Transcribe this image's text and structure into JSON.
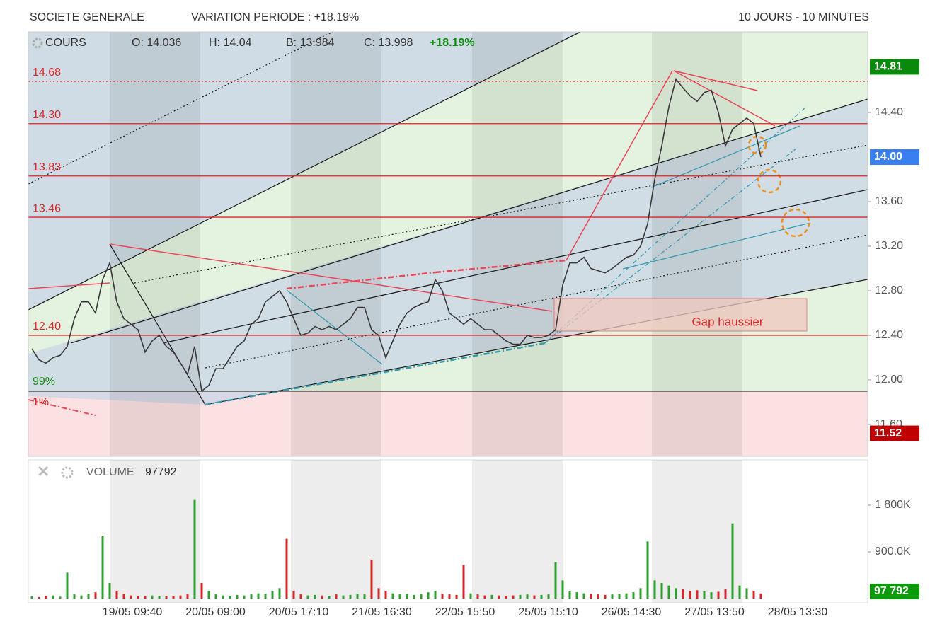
{
  "header": {
    "title": "SOCIETE GENERALE",
    "variation": "VARIATION PERIODE : +18.19%",
    "period": "10 JOURS - 10 MINUTES"
  },
  "chart_data": [
    {
      "type": "line",
      "legend": {
        "name": "COURS",
        "open": "O: 14.036",
        "high": "H: 14.04",
        "low": "B: 13.984",
        "close": "C: 13.998",
        "change": "+18.19%"
      },
      "xtick_labels": [
        "19/05 09:40",
        "20/05 09:00",
        "20/05 17:10",
        "21/05 16:30",
        "22/05 15:50",
        "25/05 15:10",
        "26/05 14:30",
        "27/05 13:50",
        "28/05 13:30"
      ],
      "values": [
        12.28,
        12.18,
        12.15,
        12.2,
        12.22,
        12.3,
        12.55,
        12.7,
        12.7,
        12.6,
        12.9,
        13.05,
        12.7,
        12.55,
        12.5,
        12.45,
        12.25,
        12.35,
        12.4,
        12.3,
        12.25,
        12.15,
        12.05,
        12.3,
        11.9,
        11.95,
        12.1,
        12.1,
        12.2,
        12.3,
        12.35,
        12.5,
        12.55,
        12.7,
        12.75,
        12.8,
        12.7,
        12.55,
        12.4,
        12.42,
        12.48,
        12.45,
        12.48,
        12.45,
        12.5,
        12.55,
        12.65,
        12.65,
        12.45,
        12.4,
        12.2,
        12.35,
        12.5,
        12.6,
        12.65,
        12.68,
        12.7,
        12.9,
        12.8,
        12.6,
        12.55,
        12.5,
        12.55,
        12.5,
        12.45,
        12.45,
        12.4,
        12.35,
        12.32,
        12.32,
        12.4,
        12.38,
        12.38,
        12.4,
        12.45,
        12.85,
        13.05,
        13.05,
        13.1,
        13.0,
        12.98,
        12.96,
        13.0,
        13.05,
        13.1,
        13.12,
        13.2,
        13.4,
        13.8,
        14.1,
        14.45,
        14.7,
        14.62,
        14.55,
        14.5,
        14.58,
        14.6,
        14.4,
        14.1,
        14.25,
        14.3,
        14.35,
        14.3,
        14.0
      ],
      "color": "#3a3a3a",
      "ylim": [
        11.314,
        15.124
      ],
      "yticks": [
        {
          "value": 11.6,
          "label": "11.60"
        },
        {
          "value": 12,
          "label": "12.00"
        },
        {
          "value": 12.4,
          "label": "12.40"
        },
        {
          "value": 12.8,
          "label": "12.80"
        },
        {
          "value": 13.2,
          "label": "13.20"
        },
        {
          "value": 13.6,
          "label": "13.60"
        },
        {
          "value": 14.4,
          "label": "14.40"
        }
      ],
      "levels": [
        {
          "value": 14.68,
          "label": "14.68",
          "dotted": true
        },
        {
          "value": 14.3,
          "label": "14.30"
        },
        {
          "value": 13.83,
          "label": "13.83"
        },
        {
          "value": 13.46,
          "label": "13.46"
        },
        {
          "value": 12.4,
          "label": "12.40"
        }
      ],
      "level_color": "#d62728",
      "zones": {
        "boundary": 11.9,
        "upper_label": "99%",
        "lower_label": "1%"
      },
      "price_labels": [
        {
          "value": 14.81,
          "label": "14.81",
          "color": "#0a8a0a"
        },
        {
          "value": 14.0,
          "label": "14.00",
          "color": "#3a7ff0"
        },
        {
          "value": 11.52,
          "label": "11.52",
          "color": "#c00000"
        }
      ],
      "annotation": "Gap haussier"
    },
    {
      "type": "bar",
      "title": "VOLUME",
      "total": "97792",
      "values": [
        40000,
        30000,
        50000,
        60000,
        35000,
        500000,
        80000,
        60000,
        90000,
        120000,
        1200000,
        300000,
        150000,
        90000,
        60000,
        50000,
        40000,
        60000,
        50000,
        45000,
        50000,
        60000,
        80000,
        1900000,
        300000,
        150000,
        80000,
        60000,
        50000,
        70000,
        60000,
        80000,
        100000,
        90000,
        150000,
        200000,
        1150000,
        150000,
        80000,
        60000,
        70000,
        60000,
        50000,
        80000,
        60000,
        70000,
        90000,
        80000,
        750000,
        200000,
        150000,
        100000,
        80000,
        90000,
        70000,
        80000,
        120000,
        150000,
        90000,
        80000,
        70000,
        650000,
        100000,
        80000,
        60000,
        70000,
        60000,
        50000,
        60000,
        70000,
        80000,
        60000,
        70000,
        80000,
        700000,
        350000,
        150000,
        120000,
        100000,
        90000,
        80000,
        70000,
        80000,
        90000,
        100000,
        120000,
        200000,
        1100000,
        350000,
        300000,
        250000,
        200000,
        180000,
        150000,
        160000,
        140000,
        120000,
        130000,
        180000,
        1450000,
        250000,
        200000,
        150000,
        97792
      ],
      "up_color": "#2ca02c",
      "down_color": "#d62728",
      "ylim": [
        0,
        2672727
      ],
      "yticks": [
        {
          "value": 900000,
          "label": "900.0K"
        },
        {
          "value": 1800000,
          "label": "1 800K"
        }
      ],
      "last_label": {
        "value": 97792,
        "label": "97 792",
        "color": "#0a9a0a"
      }
    }
  ]
}
